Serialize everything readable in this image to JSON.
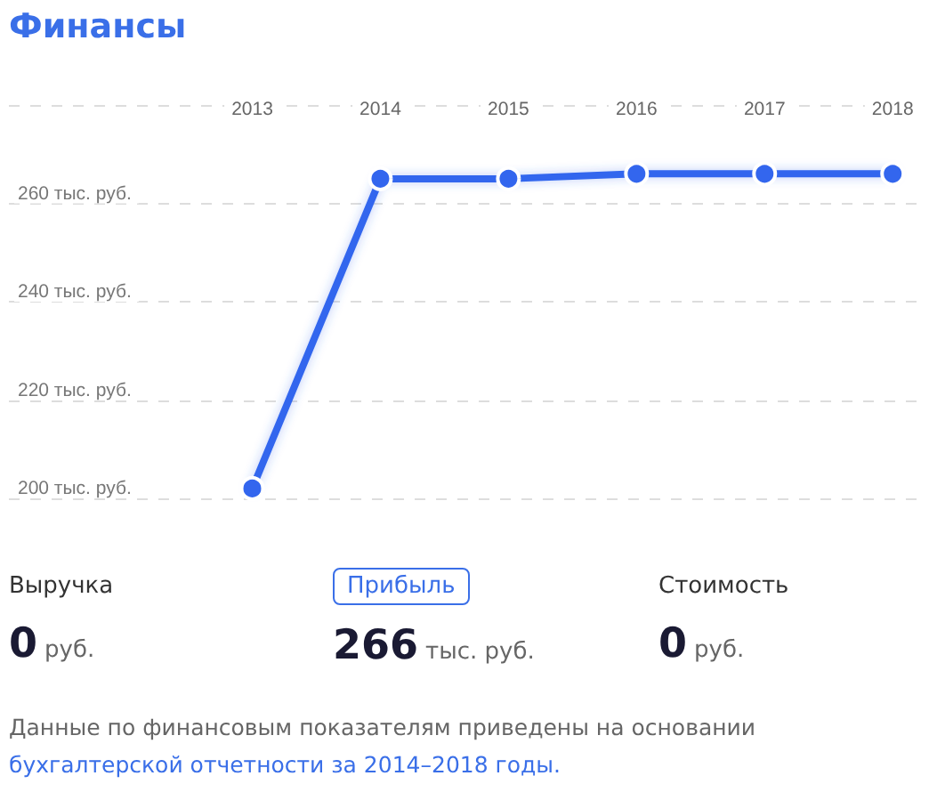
{
  "chart_data": {
    "type": "line",
    "title": "Финансы",
    "categories": [
      "2013",
      "2014",
      "2015",
      "2016",
      "2017",
      "2018"
    ],
    "series": [
      {
        "color": "#3366ee",
        "values": [
          202,
          265,
          265,
          266,
          266,
          266
        ]
      }
    ],
    "ylim": [
      200,
      280
    ],
    "yticks": [
      {
        "value": 200,
        "label": "200 тыс. руб."
      },
      {
        "value": 220,
        "label": "220 тыс. руб."
      },
      {
        "value": 240,
        "label": "240 тыс. руб."
      },
      {
        "value": 260,
        "label": "260 тыс. руб."
      },
      {
        "value": 280,
        "label": null
      }
    ],
    "grid": "y",
    "marker": "circle",
    "line_style": "solid",
    "annotations": [
      "Выручка",
      "0 руб.",
      "Прибыль",
      "266 тыс. руб.",
      "Стоимость",
      "0 руб.",
      "Данные по финансовым показателям приведены на основании",
      "бухгалтерской отчетности за 2014–2018 годы."
    ]
  }
}
